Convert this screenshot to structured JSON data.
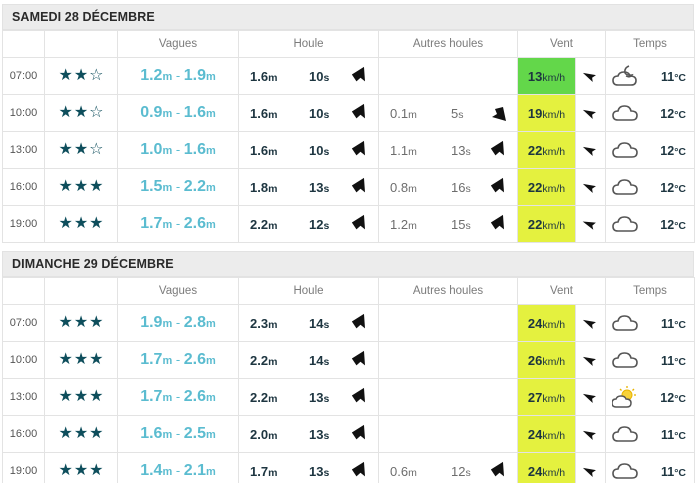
{
  "days": [
    {
      "title": "SAMEDI 28 DÉCEMBRE",
      "headers": {
        "waves": "Vagues",
        "swell": "Houle",
        "other": "Autres houles",
        "wind": "Vent",
        "weather": "Temps"
      },
      "rows": [
        {
          "time": "07:00",
          "rating": 2,
          "wave_min": "1.2",
          "wave_max": "1.9",
          "swell_h": "1.6",
          "swell_p": "10",
          "other_h": "",
          "other_p": "",
          "wind": "13",
          "wind_color": "#63d74a",
          "weather": "cloud-moon-icon",
          "temp": "11"
        },
        {
          "time": "10:00",
          "rating": 2,
          "wave_min": "0.9",
          "wave_max": "1.6",
          "swell_h": "1.6",
          "swell_p": "10",
          "other_h": "0.1",
          "other_p": "5",
          "wind": "19",
          "wind_color": "#e4f13f",
          "weather": "cloud-icon",
          "temp": "12"
        },
        {
          "time": "13:00",
          "rating": 2,
          "wave_min": "1.0",
          "wave_max": "1.6",
          "swell_h": "1.6",
          "swell_p": "10",
          "other_h": "1.1",
          "other_p": "13",
          "wind": "22",
          "wind_color": "#e4f13f",
          "weather": "cloud-icon",
          "temp": "12"
        },
        {
          "time": "16:00",
          "rating": 3,
          "wave_min": "1.5",
          "wave_max": "2.2",
          "swell_h": "1.8",
          "swell_p": "13",
          "other_h": "0.8",
          "other_p": "16",
          "wind": "22",
          "wind_color": "#e4f13f",
          "weather": "cloud-icon",
          "temp": "12"
        },
        {
          "time": "19:00",
          "rating": 3,
          "wave_min": "1.7",
          "wave_max": "2.6",
          "swell_h": "2.2",
          "swell_p": "12",
          "other_h": "1.2",
          "other_p": "15",
          "wind": "22",
          "wind_color": "#e4f13f",
          "weather": "cloud-icon",
          "temp": "12"
        }
      ]
    },
    {
      "title": "DIMANCHE 29 DÉCEMBRE",
      "headers": {
        "waves": "Vagues",
        "swell": "Houle",
        "other": "Autres houles",
        "wind": "Vent",
        "weather": "Temps"
      },
      "rows": [
        {
          "time": "07:00",
          "rating": 3,
          "wave_min": "1.9",
          "wave_max": "2.8",
          "swell_h": "2.3",
          "swell_p": "14",
          "other_h": "",
          "other_p": "",
          "wind": "24",
          "wind_color": "#e4f13f",
          "weather": "cloud-icon",
          "temp": "11"
        },
        {
          "time": "10:00",
          "rating": 3,
          "wave_min": "1.7",
          "wave_max": "2.6",
          "swell_h": "2.2",
          "swell_p": "14",
          "other_h": "",
          "other_p": "",
          "wind": "26",
          "wind_color": "#e4f13f",
          "weather": "cloud-icon",
          "temp": "11"
        },
        {
          "time": "13:00",
          "rating": 3,
          "wave_min": "1.7",
          "wave_max": "2.6",
          "swell_h": "2.2",
          "swell_p": "13",
          "other_h": "",
          "other_p": "",
          "wind": "27",
          "wind_color": "#e4f13f",
          "weather": "sun-cloud-icon",
          "temp": "12"
        },
        {
          "time": "16:00",
          "rating": 3,
          "wave_min": "1.6",
          "wave_max": "2.5",
          "swell_h": "2.0",
          "swell_p": "13",
          "other_h": "",
          "other_p": "",
          "wind": "24",
          "wind_color": "#e4f13f",
          "weather": "cloud-icon",
          "temp": "11"
        },
        {
          "time": "19:00",
          "rating": 3,
          "wave_min": "1.4",
          "wave_max": "2.1",
          "swell_h": "1.7",
          "swell_p": "13",
          "other_h": "0.6",
          "other_p": "12",
          "wind": "24",
          "wind_color": "#e4f13f",
          "weather": "cloud-icon",
          "temp": "11"
        }
      ]
    }
  ],
  "units": {
    "wave": "m",
    "height": "m",
    "period": "s",
    "wind": "km/h",
    "temp": "°C"
  }
}
